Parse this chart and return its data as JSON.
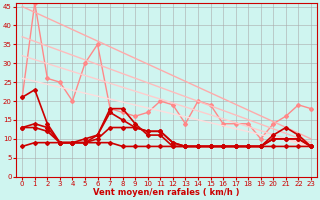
{
  "xlabel": "Vent moyen/en rafales ( km/h )",
  "background_color": "#cff5f0",
  "grid_color": "#aaaaaa",
  "xlim": [
    -0.5,
    23.5
  ],
  "ylim": [
    0,
    46
  ],
  "yticks": [
    0,
    5,
    10,
    15,
    20,
    25,
    30,
    35,
    40,
    45
  ],
  "xticks": [
    0,
    1,
    2,
    3,
    4,
    5,
    6,
    7,
    8,
    9,
    10,
    11,
    12,
    13,
    14,
    15,
    16,
    17,
    18,
    19,
    20,
    21,
    22,
    23
  ],
  "series_light": [
    {
      "x": [
        0,
        1,
        2,
        3,
        4,
        5,
        6,
        7,
        8,
        9,
        10,
        11,
        12,
        13,
        14,
        15,
        16,
        17,
        18,
        19,
        20,
        21,
        22,
        23
      ],
      "y": [
        21,
        46,
        26,
        25,
        20,
        30,
        35,
        18,
        17,
        16,
        17,
        20,
        19,
        14,
        20,
        19,
        14,
        14,
        14,
        10,
        14,
        16,
        19,
        18
      ],
      "color": "#ff8888",
      "lw": 1.0,
      "ms": 2.0
    },
    {
      "x": [
        0,
        23
      ],
      "y": [
        45,
        10
      ],
      "color": "#ffaaaa",
      "lw": 1.0,
      "ms": 0
    },
    {
      "x": [
        0,
        23
      ],
      "y": [
        37,
        9
      ],
      "color": "#ffbbbb",
      "lw": 1.0,
      "ms": 0
    },
    {
      "x": [
        0,
        23
      ],
      "y": [
        32,
        8
      ],
      "color": "#ffcccc",
      "lw": 1.0,
      "ms": 0
    },
    {
      "x": [
        0,
        23
      ],
      "y": [
        26,
        8
      ],
      "color": "#ffdddd",
      "lw": 1.0,
      "ms": 0
    }
  ],
  "series_dark": [
    {
      "x": [
        0,
        1,
        2,
        3,
        4,
        5,
        6,
        7,
        8,
        9,
        10,
        11,
        12,
        13,
        14,
        15,
        16,
        17,
        18,
        19,
        20,
        21,
        22,
        23
      ],
      "y": [
        21,
        23,
        14,
        9,
        9,
        9,
        11,
        18,
        18,
        14,
        11,
        11,
        8,
        8,
        8,
        8,
        8,
        8,
        8,
        8,
        11,
        13,
        11,
        8
      ],
      "color": "#cc0000",
      "lw": 1.2,
      "ms": 2.0
    },
    {
      "x": [
        0,
        1,
        2,
        3,
        4,
        5,
        6,
        7,
        8,
        9,
        10,
        11,
        12,
        13,
        14,
        15,
        16,
        17,
        18,
        19,
        20,
        21,
        22,
        23
      ],
      "y": [
        13,
        14,
        13,
        9,
        9,
        10,
        11,
        17,
        15,
        13,
        12,
        12,
        9,
        8,
        8,
        8,
        8,
        8,
        8,
        8,
        10,
        10,
        10,
        8
      ],
      "color": "#cc0000",
      "lw": 1.2,
      "ms": 2.0
    },
    {
      "x": [
        0,
        1,
        2,
        3,
        4,
        5,
        6,
        7,
        8,
        9,
        10,
        11,
        12,
        13,
        14,
        15,
        16,
        17,
        18,
        19,
        20,
        21,
        22,
        23
      ],
      "y": [
        13,
        13,
        12,
        9,
        9,
        9,
        10,
        13,
        13,
        13,
        12,
        12,
        9,
        8,
        8,
        8,
        8,
        8,
        8,
        8,
        10,
        10,
        10,
        8
      ],
      "color": "#cc0000",
      "lw": 1.2,
      "ms": 2.0
    },
    {
      "x": [
        0,
        1,
        2,
        3,
        4,
        5,
        6,
        7,
        8,
        9,
        10,
        11,
        12,
        13,
        14,
        15,
        16,
        17,
        18,
        19,
        20,
        21,
        22,
        23
      ],
      "y": [
        8,
        9,
        9,
        9,
        9,
        9,
        9,
        9,
        8,
        8,
        8,
        8,
        8,
        8,
        8,
        8,
        8,
        8,
        8,
        8,
        8,
        8,
        8,
        8
      ],
      "color": "#cc0000",
      "lw": 1.2,
      "ms": 2.0
    }
  ]
}
